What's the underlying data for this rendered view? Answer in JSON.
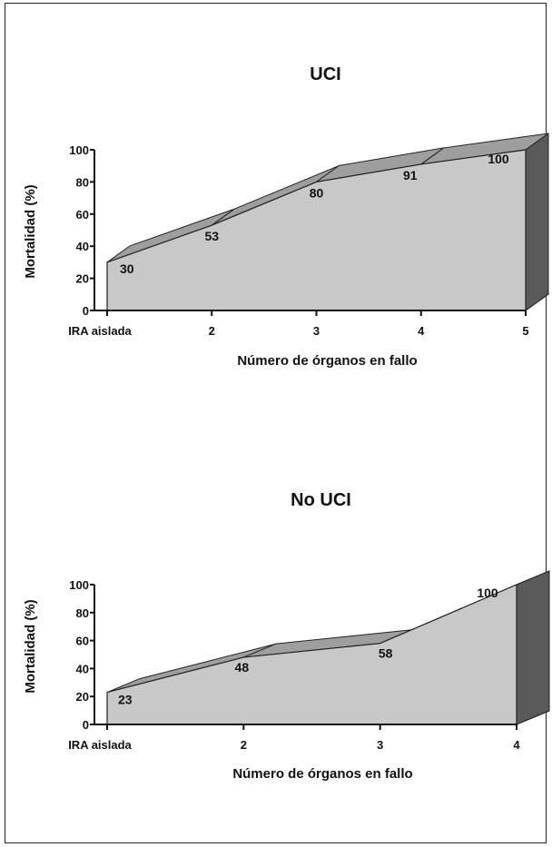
{
  "chart_data": [
    {
      "type": "area",
      "title": "UCI",
      "xlabel": "Número de órganos en fallo",
      "ylabel": "Mortalidad (%)",
      "categories": [
        "IRA aislada",
        "2",
        "3",
        "4",
        "5"
      ],
      "values": [
        30,
        53,
        80,
        91,
        100
      ],
      "data_labels": [
        "30",
        "53",
        "80",
        "91",
        "100"
      ],
      "ylim": [
        0,
        100
      ],
      "yticks": [
        "0",
        "20",
        "40",
        "60",
        "80",
        "100"
      ],
      "grid": false,
      "style": "3d"
    },
    {
      "type": "area",
      "title": "No UCI",
      "xlabel": "Número de órganos en fallo",
      "ylabel": "Mortalidad (%)",
      "categories": [
        "IRA aislada",
        "2",
        "3",
        "4"
      ],
      "values": [
        23,
        48,
        58,
        100
      ],
      "data_labels": [
        "23",
        "48",
        "58",
        "100"
      ],
      "ylim": [
        0,
        100
      ],
      "yticks": [
        "0",
        "20",
        "40",
        "60",
        "80",
        "100"
      ],
      "grid": false,
      "style": "3d"
    }
  ],
  "colors": {
    "area_front": "#c8c8c8",
    "area_top": "#9e9e9e",
    "area_side": "#5a5a5a",
    "floor": "#8a8a8a",
    "axis": "#111111"
  }
}
